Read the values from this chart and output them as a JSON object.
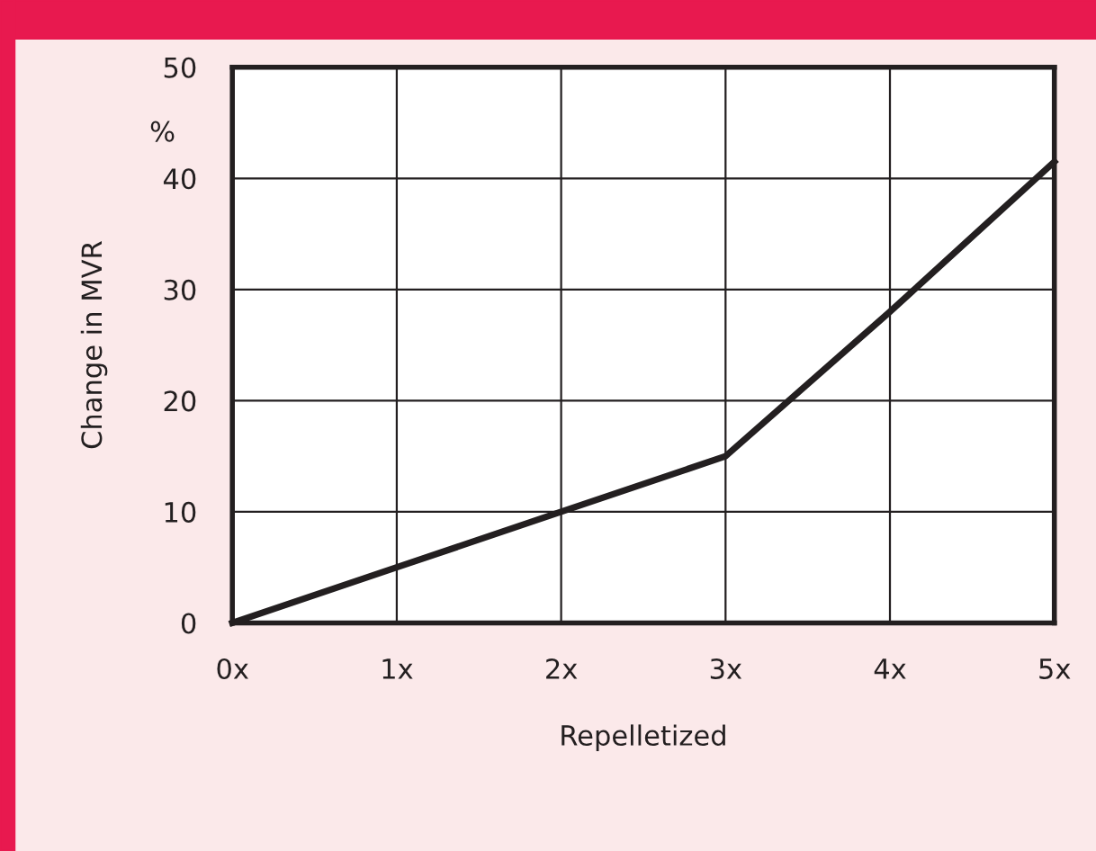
{
  "chart_data": {
    "type": "line",
    "xlabel": "Repelletized",
    "ylabel": "Change in MVR",
    "annotations": [
      "%"
    ],
    "x": [
      0,
      1,
      2,
      3,
      4,
      5
    ],
    "series": [
      {
        "color": "#231f20",
        "values": [
          0,
          5,
          10,
          15,
          28,
          41.5
        ]
      }
    ],
    "xlim": [
      0,
      5
    ],
    "xticks": [
      {
        "value": 0,
        "label": "0x"
      },
      {
        "value": 1,
        "label": "1x"
      },
      {
        "value": 2,
        "label": "2x"
      },
      {
        "value": 3,
        "label": "3x"
      },
      {
        "value": 4,
        "label": "4x"
      },
      {
        "value": 5,
        "label": "5x"
      }
    ],
    "ylim": [
      0,
      50
    ],
    "yticks": [
      0,
      10,
      20,
      30,
      40,
      50
    ],
    "grid": true,
    "marker": "none",
    "line_style": "solid"
  }
}
